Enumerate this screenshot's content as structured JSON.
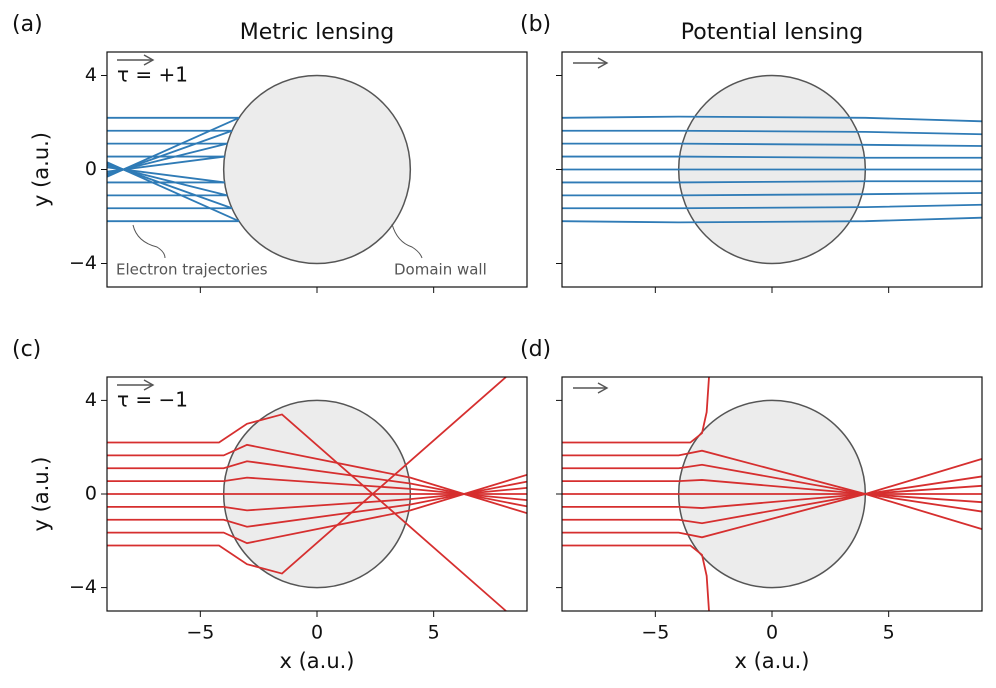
{
  "chart_data": [
    {
      "type": "line",
      "panel_label": "(a)",
      "title": "Metric lensing",
      "annotation": "τ = +1",
      "ylabel": "y (a.u.)",
      "note_left": "Electron trajectories",
      "note_right": "Domain wall",
      "color": "#2f7bb6",
      "xlim": [
        -9,
        9
      ],
      "ylim": [
        -5,
        5
      ],
      "xticks": [
        {
          "value": -5,
          "label": "−5"
        },
        0,
        5
      ],
      "yticks": [
        {
          "value": -4,
          "label": "−4"
        },
        0,
        4
      ],
      "xtick_labels": false,
      "ytick_labels": true,
      "domain_wall": {
        "x": 0,
        "y": 0,
        "radius": 4
      },
      "series": [
        {
          "x": [
            -9,
            -3.34
          ],
          "values": [
            2.2,
            2.2
          ]
        },
        {
          "x": [
            -9,
            -3.64
          ],
          "values": [
            1.65,
            1.65
          ]
        },
        {
          "x": [
            -9,
            -3.85
          ],
          "values": [
            1.1,
            1.1
          ]
        },
        {
          "x": [
            -9,
            -3.96
          ],
          "values": [
            0.55,
            0.55
          ]
        },
        {
          "x": [
            -9,
            -3.34
          ],
          "values": [
            -2.2,
            -2.2
          ]
        },
        {
          "x": [
            -9,
            -3.64
          ],
          "values": [
            -1.65,
            -1.65
          ]
        },
        {
          "x": [
            -9,
            -3.85
          ],
          "values": [
            -1.1,
            -1.1
          ]
        },
        {
          "x": [
            -9,
            -3.96
          ],
          "values": [
            -0.55,
            -0.55
          ]
        },
        {
          "x": [
            -3.34,
            -9
          ],
          "values": [
            2.2,
            -0.31
          ]
        },
        {
          "x": [
            -3.64,
            -9
          ],
          "values": [
            1.65,
            -0.25
          ]
        },
        {
          "x": [
            -3.85,
            -9
          ],
          "values": [
            1.1,
            -0.17
          ]
        },
        {
          "x": [
            -3.96,
            -9
          ],
          "values": [
            0.55,
            -0.09
          ]
        },
        {
          "x": [
            -3.34,
            -9
          ],
          "values": [
            -2.2,
            0.31
          ]
        },
        {
          "x": [
            -3.64,
            -9
          ],
          "values": [
            -1.65,
            0.25
          ]
        },
        {
          "x": [
            -3.85,
            -9
          ],
          "values": [
            -1.1,
            0.17
          ]
        },
        {
          "x": [
            -3.96,
            -9
          ],
          "values": [
            -0.55,
            0.09
          ]
        }
      ]
    },
    {
      "type": "line",
      "panel_label": "(b)",
      "title": "Potential lensing",
      "color": "#2f7bb6",
      "xlim": [
        -9,
        9
      ],
      "ylim": [
        -5,
        5
      ],
      "xticks": [
        {
          "value": -5,
          "label": "−5"
        },
        0,
        5
      ],
      "yticks": [
        {
          "value": -4,
          "label": "−4"
        },
        0,
        4
      ],
      "xtick_labels": false,
      "ytick_labels": false,
      "domain_wall": {
        "x": 0,
        "y": 0,
        "radius": 4
      },
      "series": [
        {
          "x": [
            -9,
            -4,
            4,
            9
          ],
          "values": [
            2.2,
            2.25,
            2.2,
            2.05
          ]
        },
        {
          "x": [
            -9,
            -4,
            4,
            9
          ],
          "values": [
            1.65,
            1.65,
            1.6,
            1.5
          ]
        },
        {
          "x": [
            -9,
            -4,
            4,
            9
          ],
          "values": [
            1.1,
            1.1,
            1.05,
            1.0
          ]
        },
        {
          "x": [
            -9,
            -4,
            4,
            9
          ],
          "values": [
            0.55,
            0.55,
            0.5,
            0.5
          ]
        },
        {
          "x": [
            -9,
            -4,
            4,
            9
          ],
          "values": [
            0,
            0,
            0,
            0
          ]
        },
        {
          "x": [
            -9,
            -4,
            4,
            9
          ],
          "values": [
            -0.55,
            -0.55,
            -0.5,
            -0.5
          ]
        },
        {
          "x": [
            -9,
            -4,
            4,
            9
          ],
          "values": [
            -1.1,
            -1.1,
            -1.05,
            -1.0
          ]
        },
        {
          "x": [
            -9,
            -4,
            4,
            9
          ],
          "values": [
            -1.65,
            -1.65,
            -1.6,
            -1.5
          ]
        },
        {
          "x": [
            -9,
            -4,
            4,
            9
          ],
          "values": [
            -2.2,
            -2.25,
            -2.2,
            -2.05
          ]
        }
      ]
    },
    {
      "type": "line",
      "panel_label": "(c)",
      "annotation": "τ = −1",
      "ylabel": "y (a.u.)",
      "xlabel": "x (a.u.)",
      "color": "#d62f2f",
      "xlim": [
        -9,
        9
      ],
      "ylim": [
        -5,
        5
      ],
      "xticks": [
        {
          "value": -5,
          "label": "−5"
        },
        0,
        5
      ],
      "yticks": [
        {
          "value": -4,
          "label": "−4"
        },
        0,
        4
      ],
      "xtick_labels": true,
      "ytick_labels": true,
      "domain_wall": {
        "x": 0,
        "y": 0,
        "radius": 4
      },
      "series": [
        {
          "x": [
            -9,
            -4.2,
            -3,
            -1.5,
            8.1
          ],
          "values": [
            2.2,
            2.2,
            3.0,
            3.4,
            -5
          ]
        },
        {
          "x": [
            -9,
            -4,
            -3,
            4,
            9
          ],
          "values": [
            1.65,
            1.65,
            2.1,
            0.7,
            -0.82
          ]
        },
        {
          "x": [
            -9,
            -4,
            -3,
            4,
            9
          ],
          "values": [
            1.1,
            1.1,
            1.4,
            0.45,
            -0.53
          ]
        },
        {
          "x": [
            -9,
            -4,
            -3,
            4,
            9
          ],
          "values": [
            0.55,
            0.55,
            0.7,
            0.22,
            -0.26
          ]
        },
        {
          "x": [
            -9,
            9
          ],
          "values": [
            0,
            0
          ]
        },
        {
          "x": [
            -9,
            -4,
            -3,
            4,
            9
          ],
          "values": [
            -0.55,
            -0.55,
            -0.7,
            -0.22,
            0.26
          ]
        },
        {
          "x": [
            -9,
            -4,
            -3,
            4,
            9
          ],
          "values": [
            -1.1,
            -1.1,
            -1.4,
            -0.45,
            0.53
          ]
        },
        {
          "x": [
            -9,
            -4,
            -3,
            4,
            9
          ],
          "values": [
            -1.65,
            -1.65,
            -2.1,
            -0.7,
            0.82
          ]
        },
        {
          "x": [
            -9,
            -4.2,
            -3,
            -1.5,
            8.1
          ],
          "values": [
            -2.2,
            -2.2,
            -3.0,
            -3.4,
            5
          ]
        }
      ]
    },
    {
      "type": "line",
      "panel_label": "(d)",
      "xlabel": "x (a.u.)",
      "color": "#d62f2f",
      "xlim": [
        -9,
        9
      ],
      "ylim": [
        -5,
        5
      ],
      "xticks": [
        {
          "value": -5,
          "label": "−5"
        },
        0,
        5
      ],
      "yticks": [
        {
          "value": -4,
          "label": "−4"
        },
        0,
        4
      ],
      "xtick_labels": true,
      "ytick_labels": false,
      "domain_wall": {
        "x": 0,
        "y": 0,
        "radius": 4
      },
      "series": [
        {
          "x": [
            -9,
            -3.5,
            -3,
            -2.8,
            -2.7
          ],
          "values": [
            2.2,
            2.2,
            2.6,
            3.5,
            5
          ]
        },
        {
          "x": [
            -9,
            -4,
            -3,
            4,
            9
          ],
          "values": [
            1.65,
            1.65,
            1.85,
            0,
            -1.5
          ]
        },
        {
          "x": [
            -9,
            -4,
            -3,
            4,
            9
          ],
          "values": [
            1.1,
            1.1,
            1.25,
            0,
            -0.75
          ]
        },
        {
          "x": [
            -9,
            -4,
            -3,
            4,
            9
          ],
          "values": [
            0.55,
            0.55,
            0.6,
            0,
            -0.35
          ]
        },
        {
          "x": [
            -9,
            9
          ],
          "values": [
            0,
            0
          ]
        },
        {
          "x": [
            -9,
            -4,
            -3,
            4,
            9
          ],
          "values": [
            -0.55,
            -0.55,
            -0.6,
            0,
            0.35
          ]
        },
        {
          "x": [
            -9,
            -4,
            -3,
            4,
            9
          ],
          "values": [
            -1.1,
            -1.1,
            -1.25,
            0,
            0.75
          ]
        },
        {
          "x": [
            -9,
            -4,
            -3,
            4,
            9
          ],
          "values": [
            -1.65,
            -1.65,
            -1.85,
            0,
            1.5
          ]
        },
        {
          "x": [
            -9,
            -3.5,
            -3,
            -2.8,
            -2.7
          ],
          "values": [
            -2.2,
            -2.2,
            -2.6,
            -3.5,
            -5
          ]
        }
      ]
    }
  ]
}
